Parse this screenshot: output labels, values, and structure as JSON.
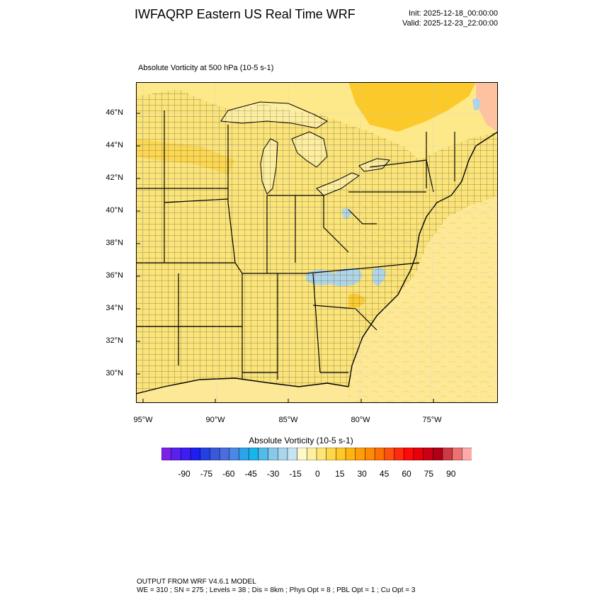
{
  "header": {
    "title": "IWFAQRP Eastern US Real Time WRF",
    "init": "Init: 2025-12-18_00:00:00",
    "valid": "Valid: 2025-12-23_22:00:00"
  },
  "map": {
    "field_title": "Absolute Vorticity at 500 hPa   (10-5 s-1)",
    "lat_labels": [
      "46°N",
      "44°N",
      "42°N",
      "40°N",
      "38°N",
      "36°N",
      "34°N",
      "32°N",
      "30°N"
    ],
    "lon_labels": [
      "95°W",
      "90°W",
      "85°W",
      "80°W",
      "75°W"
    ],
    "colors": {
      "land_fill": "#fbe680",
      "water_fill": "#fdf0a8",
      "positive_strong": "#fbc92a",
      "negative_weak": "#a7d3ef"
    }
  },
  "colorbar": {
    "title": "Absolute Vorticity  (10-5 s-1)",
    "colors": [
      "#7c21e8",
      "#5a20f0",
      "#3d1cf5",
      "#1e1ef0",
      "#2340e0",
      "#3a58dc",
      "#4a6ee0",
      "#4a88e8",
      "#2fa2ec",
      "#18b5ea",
      "#52bbe8",
      "#88c8ea",
      "#a8d6ee",
      "#c6e4f2",
      "#fff8c8",
      "#fff0a0",
      "#ffe476",
      "#ffd54a",
      "#ffc828",
      "#ffb414",
      "#ff9e0a",
      "#ff8a06",
      "#ff7004",
      "#ff5010",
      "#ff2a10",
      "#ff0a0a",
      "#e8000a",
      "#cc0012",
      "#b00018",
      "#cc3a44",
      "#ee7070",
      "#ffaaaa"
    ],
    "tick_labels": [
      "-90",
      "-75",
      "-60",
      "-45",
      "-30",
      "-15",
      "0",
      "15",
      "30",
      "45",
      "60",
      "75",
      "90"
    ]
  },
  "footer": {
    "line1": "OUTPUT FROM WRF V4.6.1 MODEL",
    "line2": "WE = 310 ; SN = 275 ; Levels = 38 ; Dis = 8km ; Phys Opt = 8 ; PBL Opt = 1 ; Cu Opt = 3"
  }
}
